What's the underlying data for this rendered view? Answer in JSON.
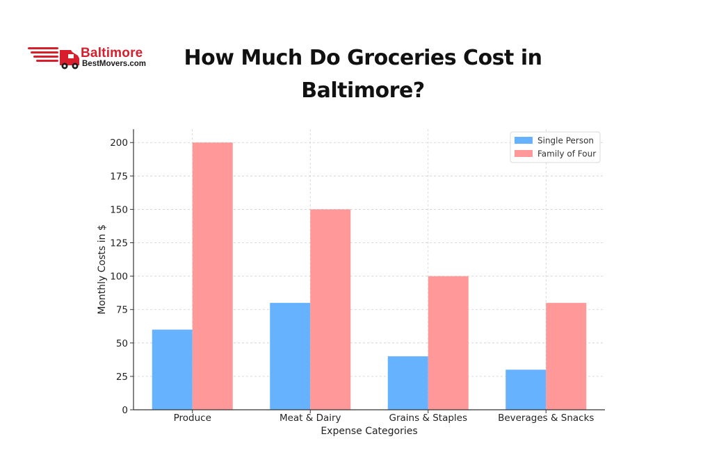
{
  "logo": {
    "line1": "Baltimore",
    "line2": "BestMovers.com",
    "icon": "moving-truck-icon",
    "color": "#d81e2c"
  },
  "title": "How Much Do Groceries Cost in Baltimore?",
  "chart_data": {
    "type": "bar",
    "categories": [
      "Produce",
      "Meat & Dairy",
      "Grains & Staples",
      "Beverages & Snacks"
    ],
    "series": [
      {
        "name": "Single Person",
        "values": [
          60,
          80,
          40,
          30
        ],
        "color": "#66b2ff"
      },
      {
        "name": "Family of Four",
        "values": [
          200,
          150,
          100,
          80
        ],
        "color": "#ff9999"
      }
    ],
    "xlabel": "Expense Categories",
    "ylabel": "Monthly Costs in $",
    "ylim": [
      0,
      210
    ],
    "yticks": [
      0,
      25,
      50,
      75,
      100,
      125,
      150,
      175,
      200
    ],
    "grid": true,
    "legend_position": "top-right"
  }
}
